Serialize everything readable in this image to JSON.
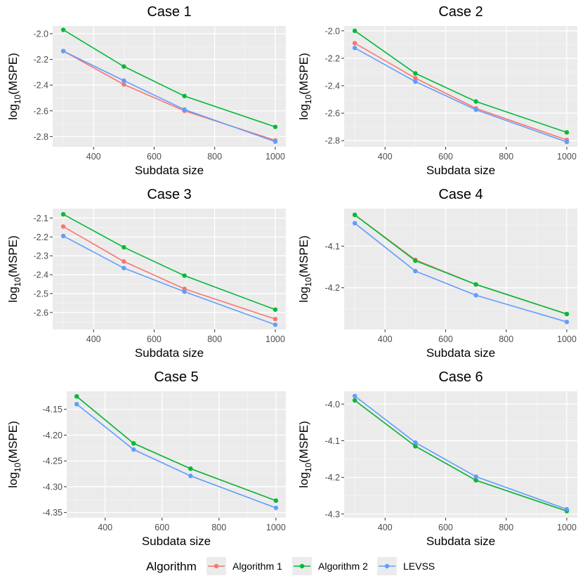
{
  "chart_data": [
    {
      "type": "line",
      "title": "Case 1",
      "xlabel": "Subdata size",
      "ylabel_main": "log",
      "ylabel_sub": "10",
      "ylabel_rest": "(MSPE)",
      "x": [
        300,
        500,
        700,
        1000
      ],
      "xlim": [
        265,
        1035
      ],
      "ylim": [
        -2.88,
        -1.94
      ],
      "xticks": [
        400,
        600,
        800,
        1000
      ],
      "xtick_labels": [
        "400",
        "600",
        "800",
        "1000"
      ],
      "yticks": [
        -2.0,
        -2.2,
        -2.4,
        -2.6,
        -2.8
      ],
      "ytick_labels": [
        "-2.0",
        "-2.2",
        "-2.4",
        "-2.6",
        "-2.8"
      ],
      "series": [
        {
          "name": "Algorithm 1",
          "values": [
            -2.135,
            -2.395,
            -2.6,
            -2.83
          ]
        },
        {
          "name": "Algorithm 2",
          "values": [
            -1.97,
            -2.255,
            -2.485,
            -2.725
          ]
        },
        {
          "name": "LEVSS",
          "values": [
            -2.135,
            -2.365,
            -2.59,
            -2.84
          ]
        }
      ]
    },
    {
      "type": "line",
      "title": "Case 2",
      "xlabel": "Subdata size",
      "ylabel_main": "log",
      "ylabel_sub": "10",
      "ylabel_rest": "(MSPE)",
      "x": [
        300,
        500,
        700,
        1000
      ],
      "xlim": [
        265,
        1035
      ],
      "ylim": [
        -2.845,
        -1.965
      ],
      "xticks": [
        400,
        600,
        800,
        1000
      ],
      "xtick_labels": [
        "400",
        "600",
        "800",
        "1000"
      ],
      "yticks": [
        -2.0,
        -2.2,
        -2.4,
        -2.6,
        -2.8
      ],
      "ytick_labels": [
        "-2.0",
        "-2.2",
        "-2.4",
        "-2.6",
        "-2.8"
      ],
      "series": [
        {
          "name": "Algorithm 1",
          "values": [
            -2.09,
            -2.345,
            -2.565,
            -2.795
          ]
        },
        {
          "name": "Algorithm 2",
          "values": [
            -2.0,
            -2.31,
            -2.515,
            -2.74
          ]
        },
        {
          "name": "LEVSS",
          "values": [
            -2.125,
            -2.37,
            -2.575,
            -2.81
          ]
        }
      ]
    },
    {
      "type": "line",
      "title": "Case 3",
      "xlabel": "Subdata size",
      "ylabel_main": "log",
      "ylabel_sub": "10",
      "ylabel_rest": "(MSPE)",
      "x": [
        300,
        500,
        700,
        1000
      ],
      "xlim": [
        265,
        1035
      ],
      "ylim": [
        -2.69,
        -2.05
      ],
      "xticks": [
        400,
        600,
        800,
        1000
      ],
      "xtick_labels": [
        "400",
        "600",
        "800",
        "1000"
      ],
      "yticks": [
        -2.1,
        -2.2,
        -2.3,
        -2.4,
        -2.5,
        -2.6
      ],
      "ytick_labels": [
        "-2.1",
        "-2.2",
        "-2.3",
        "-2.4",
        "-2.5",
        "-2.6"
      ],
      "series": [
        {
          "name": "Algorithm 1",
          "values": [
            -2.145,
            -2.33,
            -2.475,
            -2.635
          ]
        },
        {
          "name": "Algorithm 2",
          "values": [
            -2.08,
            -2.255,
            -2.405,
            -2.585
          ]
        },
        {
          "name": "LEVSS",
          "values": [
            -2.195,
            -2.365,
            -2.49,
            -2.665
          ]
        }
      ]
    },
    {
      "type": "line",
      "title": "Case 4",
      "xlabel": "Subdata size",
      "ylabel_main": "log",
      "ylabel_sub": "10",
      "ylabel_rest": "(MSPE)",
      "x": [
        300,
        500,
        700,
        1000
      ],
      "xlim": [
        265,
        1035
      ],
      "ylim": [
        -4.3,
        -4.01
      ],
      "xticks": [
        400,
        600,
        800,
        1000
      ],
      "xtick_labels": [
        "400",
        "600",
        "800",
        "1000"
      ],
      "yticks": [
        -4.1,
        -4.2
      ],
      "ytick_labels": [
        "-4.1",
        "-4.2"
      ],
      "series": [
        {
          "name": "Algorithm 1",
          "values": [
            -4.025,
            -4.133,
            -4.192,
            -4.263
          ]
        },
        {
          "name": "Algorithm 2",
          "values": [
            -4.025,
            -4.135,
            -4.192,
            -4.263
          ]
        },
        {
          "name": "LEVSS",
          "values": [
            -4.045,
            -4.16,
            -4.218,
            -4.282
          ]
        }
      ]
    },
    {
      "type": "line",
      "title": "Case 5",
      "xlabel": "Subdata size",
      "ylabel_main": "log",
      "ylabel_sub": "10",
      "ylabel_rest": "(MSPE)",
      "x": [
        300,
        500,
        700,
        1000
      ],
      "xlim": [
        265,
        1035
      ],
      "ylim": [
        -4.36,
        -4.115
      ],
      "xticks": [
        400,
        600,
        800,
        1000
      ],
      "xtick_labels": [
        "400",
        "600",
        "800",
        "1000"
      ],
      "yticks": [
        -4.15,
        -4.2,
        -4.25,
        -4.3,
        -4.35
      ],
      "ytick_labels": [
        "-4.15",
        "-4.20",
        "-4.25",
        "-4.30",
        "-4.35"
      ],
      "series": [
        {
          "name": "Algorithm 1",
          "values": [
            -4.125,
            -4.216,
            -4.265,
            -4.327
          ]
        },
        {
          "name": "Algorithm 2",
          "values": [
            -4.125,
            -4.216,
            -4.265,
            -4.327
          ]
        },
        {
          "name": "LEVSS",
          "values": [
            -4.14,
            -4.228,
            -4.279,
            -4.341
          ]
        }
      ]
    },
    {
      "type": "line",
      "title": "Case 6",
      "xlabel": "Subdata size",
      "ylabel_main": "log",
      "ylabel_sub": "10",
      "ylabel_rest": "(MSPE)",
      "x": [
        300,
        500,
        700,
        1000
      ],
      "xlim": [
        265,
        1035
      ],
      "ylim": [
        -4.31,
        -3.965
      ],
      "xticks": [
        400,
        600,
        800,
        1000
      ],
      "xtick_labels": [
        "400",
        "600",
        "800",
        "1000"
      ],
      "yticks": [
        -4.0,
        -4.1,
        -4.2,
        -4.3
      ],
      "ytick_labels": [
        "-4.0",
        "-4.1",
        "-4.2",
        "-4.3"
      ],
      "series": [
        {
          "name": "Algorithm 1",
          "values": [
            -3.99,
            -4.115,
            -4.208,
            -4.292
          ]
        },
        {
          "name": "Algorithm 2",
          "values": [
            -3.99,
            -4.115,
            -4.208,
            -4.292
          ]
        },
        {
          "name": "LEVSS",
          "values": [
            -3.978,
            -4.105,
            -4.198,
            -4.287
          ]
        }
      ]
    }
  ],
  "legend": {
    "title": "Algorithm",
    "position": "bottom",
    "items": [
      {
        "name": "Algorithm 1",
        "color": "#F8766D"
      },
      {
        "name": "Algorithm 2",
        "color": "#00BA38"
      },
      {
        "name": "LEVSS",
        "color": "#619CFF"
      }
    ]
  },
  "colors": {
    "panel_background": "#EBEBEB",
    "grid_major": "#FFFFFF",
    "algorithm_1": "#F8766D",
    "algorithm_2": "#00BA38",
    "levss": "#619CFF"
  }
}
